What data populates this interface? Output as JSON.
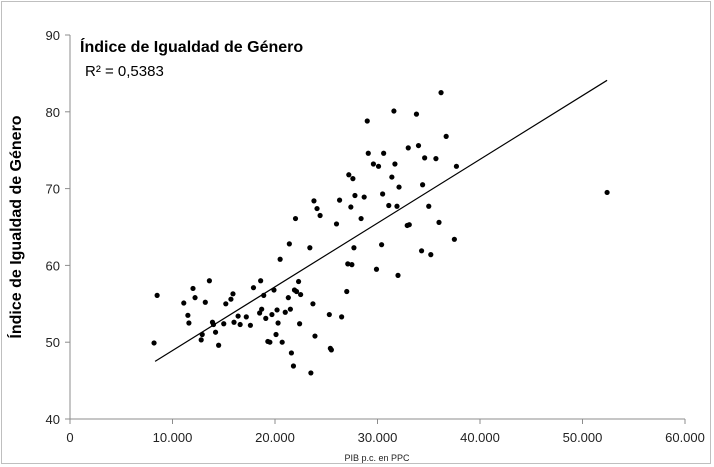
{
  "chart_data": {
    "type": "scatter",
    "title": "Índice de Igualdad de Género",
    "annotation": "R² = 0,5383",
    "xlabel": "PIB p.c. en PPC",
    "ylabel": "Índice de Igualdad de Género",
    "xlim": [
      0,
      60000
    ],
    "ylim": [
      40,
      90
    ],
    "xticks": [
      0,
      10000,
      20000,
      30000,
      40000,
      50000,
      60000
    ],
    "xtick_labels": [
      "0",
      "10.000",
      "20.000",
      "30.000",
      "40.000",
      "50.000",
      "60.000"
    ],
    "yticks": [
      40,
      50,
      60,
      70,
      80,
      90
    ],
    "ytick_labels": [
      "40",
      "50",
      "60",
      "70",
      "80",
      "90"
    ],
    "grid": false,
    "legend": "none",
    "marker_color": "#000000",
    "trendline": {
      "type": "linear",
      "x": [
        8300,
        52400
      ],
      "y": [
        47.5,
        84.1
      ],
      "color": "#000000"
    },
    "points": [
      [
        8200,
        49.9
      ],
      [
        8500,
        56.1
      ],
      [
        11100,
        55.1
      ],
      [
        11500,
        53.5
      ],
      [
        11600,
        52.5
      ],
      [
        12000,
        57.0
      ],
      [
        12200,
        55.8
      ],
      [
        12800,
        50.3
      ],
      [
        12900,
        51.0
      ],
      [
        13200,
        55.2
      ],
      [
        13600,
        58.0
      ],
      [
        13900,
        52.6
      ],
      [
        14000,
        52.3
      ],
      [
        14200,
        51.3
      ],
      [
        14500,
        49.6
      ],
      [
        15000,
        52.4
      ],
      [
        15200,
        55.0
      ],
      [
        15700,
        55.6
      ],
      [
        15900,
        56.3
      ],
      [
        16000,
        52.6
      ],
      [
        16400,
        53.4
      ],
      [
        16600,
        52.3
      ],
      [
        17200,
        53.3
      ],
      [
        17600,
        52.2
      ],
      [
        17900,
        57.1
      ],
      [
        18500,
        53.8
      ],
      [
        18600,
        58.0
      ],
      [
        18700,
        54.3
      ],
      [
        18900,
        56.1
      ],
      [
        19100,
        53.1
      ],
      [
        19300,
        50.1
      ],
      [
        19500,
        50.0
      ],
      [
        19700,
        53.6
      ],
      [
        19900,
        56.8
      ],
      [
        20100,
        51.0
      ],
      [
        20200,
        54.2
      ],
      [
        20300,
        52.5
      ],
      [
        20500,
        60.8
      ],
      [
        20700,
        50.0
      ],
      [
        21000,
        53.9
      ],
      [
        21300,
        55.8
      ],
      [
        21400,
        62.8
      ],
      [
        21500,
        54.3
      ],
      [
        21600,
        48.6
      ],
      [
        21800,
        46.9
      ],
      [
        21900,
        56.8
      ],
      [
        22000,
        66.1
      ],
      [
        22100,
        56.6
      ],
      [
        22300,
        57.9
      ],
      [
        22400,
        52.4
      ],
      [
        22500,
        56.2
      ],
      [
        23400,
        62.3
      ],
      [
        23500,
        46.0
      ],
      [
        23700,
        55.0
      ],
      [
        23800,
        68.4
      ],
      [
        23900,
        50.8
      ],
      [
        24100,
        67.4
      ],
      [
        24400,
        66.5
      ],
      [
        25300,
        53.6
      ],
      [
        25400,
        49.2
      ],
      [
        25500,
        49.0
      ],
      [
        26000,
        65.4
      ],
      [
        26300,
        68.5
      ],
      [
        26500,
        53.3
      ],
      [
        27000,
        56.6
      ],
      [
        27100,
        60.2
      ],
      [
        27200,
        71.8
      ],
      [
        27400,
        67.6
      ],
      [
        27500,
        60.1
      ],
      [
        27600,
        71.3
      ],
      [
        27700,
        62.3
      ],
      [
        27800,
        69.1
      ],
      [
        28400,
        66.1
      ],
      [
        28700,
        68.9
      ],
      [
        29000,
        78.8
      ],
      [
        29100,
        74.6
      ],
      [
        29600,
        73.2
      ],
      [
        29900,
        59.5
      ],
      [
        30100,
        72.9
      ],
      [
        30400,
        62.7
      ],
      [
        30500,
        69.3
      ],
      [
        30600,
        74.6
      ],
      [
        31100,
        67.8
      ],
      [
        31400,
        71.5
      ],
      [
        31600,
        80.1
      ],
      [
        31700,
        73.2
      ],
      [
        31900,
        67.7
      ],
      [
        32000,
        58.7
      ],
      [
        32100,
        70.2
      ],
      [
        32900,
        65.2
      ],
      [
        33000,
        75.3
      ],
      [
        33100,
        65.3
      ],
      [
        33800,
        79.7
      ],
      [
        34000,
        75.6
      ],
      [
        34300,
        61.9
      ],
      [
        34400,
        70.5
      ],
      [
        34600,
        74.0
      ],
      [
        35000,
        67.7
      ],
      [
        35200,
        61.4
      ],
      [
        35700,
        73.9
      ],
      [
        36000,
        65.6
      ],
      [
        36200,
        82.5
      ],
      [
        36700,
        76.8
      ],
      [
        37500,
        63.4
      ],
      [
        37700,
        72.9
      ],
      [
        52400,
        69.5
      ]
    ]
  }
}
